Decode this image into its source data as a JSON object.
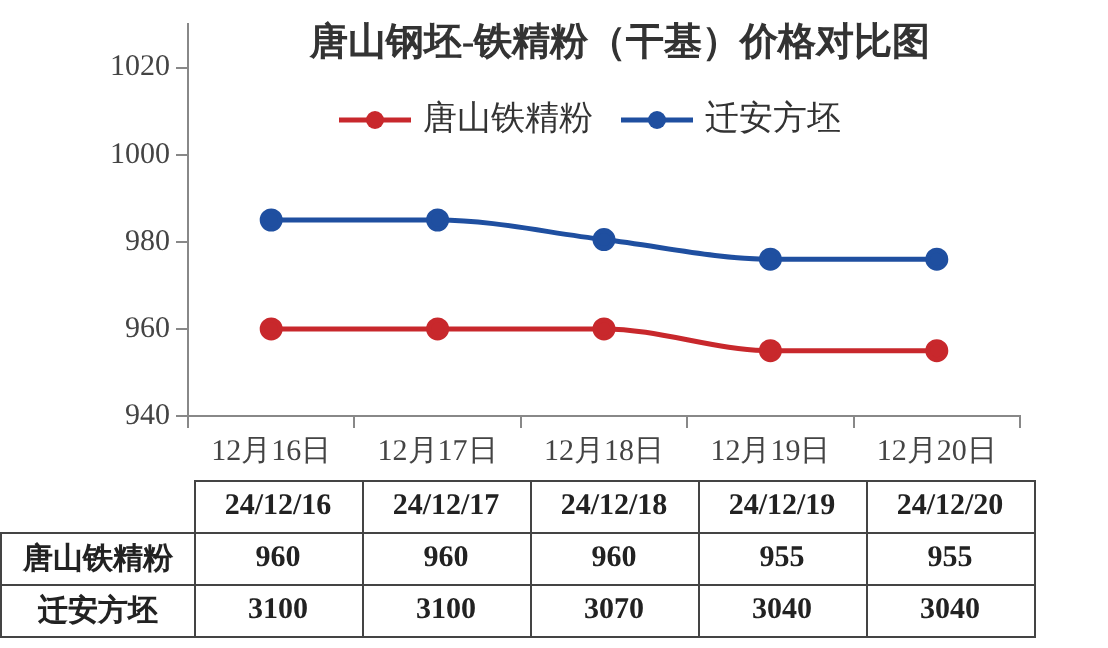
{
  "chart_data": {
    "type": "line",
    "title": "唐山钢坯-铁精粉（干基）价格对比图",
    "categories": [
      "12月16日",
      "12月17日",
      "12月18日",
      "12月19日",
      "12月20日"
    ],
    "series": [
      {
        "name": "唐山铁精粉",
        "color": "#c8282c",
        "values": [
          960,
          960,
          960,
          955,
          955
        ]
      },
      {
        "name": "迁安方坯",
        "color": "#1f4fa0",
        "values": [
          3100,
          3100,
          3070,
          3040,
          3040
        ],
        "axis": "y2"
      }
    ],
    "ylim": [
      940,
      1030
    ],
    "yticks": [
      940,
      960,
      980,
      1000,
      1020
    ],
    "y2lim": [
      2800,
      3400
    ],
    "grid": false,
    "legend": "top",
    "marker": "circle",
    "line_style": "solid",
    "data_labels": true,
    "annotations": [
      "24/12/16",
      "24/12/17",
      "24/12/18",
      "24/12/19",
      "24/12/20"
    ]
  }
}
